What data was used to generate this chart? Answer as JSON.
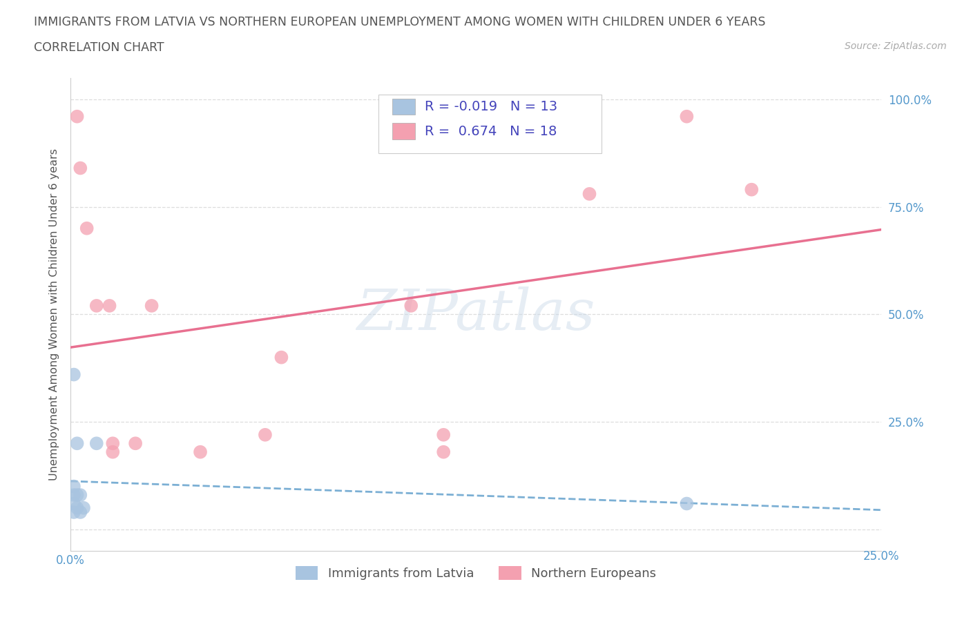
{
  "title": "IMMIGRANTS FROM LATVIA VS NORTHERN EUROPEAN UNEMPLOYMENT AMONG WOMEN WITH CHILDREN UNDER 6 YEARS",
  "subtitle": "CORRELATION CHART",
  "source": "Source: ZipAtlas.com",
  "ylabel": "Unemployment Among Women with Children Under 6 years",
  "xlim": [
    0.0,
    0.25
  ],
  "ylim": [
    -0.05,
    1.05
  ],
  "yticks": [
    0.0,
    0.25,
    0.5,
    0.75,
    1.0
  ],
  "yticklabels_right": [
    "",
    "25.0%",
    "50.0%",
    "75.0%",
    "100.0%"
  ],
  "latvia_x": [
    0.001,
    0.001,
    0.001,
    0.001,
    0.001,
    0.002,
    0.002,
    0.002,
    0.003,
    0.003,
    0.004,
    0.008,
    0.19
  ],
  "latvia_y": [
    0.04,
    0.06,
    0.08,
    0.1,
    0.36,
    0.05,
    0.08,
    0.2,
    0.04,
    0.08,
    0.05,
    0.2,
    0.06
  ],
  "northern_x": [
    0.002,
    0.003,
    0.005,
    0.008,
    0.012,
    0.013,
    0.013,
    0.02,
    0.025,
    0.04,
    0.06,
    0.065,
    0.105,
    0.115,
    0.115,
    0.16,
    0.19,
    0.21
  ],
  "northern_y": [
    0.96,
    0.84,
    0.7,
    0.52,
    0.52,
    0.18,
    0.2,
    0.2,
    0.52,
    0.18,
    0.22,
    0.4,
    0.52,
    0.18,
    0.22,
    0.78,
    0.96,
    0.79
  ],
  "latvia_color": "#a8c4e0",
  "northern_color": "#f4a0b0",
  "latvia_line_color": "#7bafd4",
  "northern_line_color": "#e87090",
  "latvia_R": -0.019,
  "latvia_N": 13,
  "northern_R": 0.674,
  "northern_N": 18,
  "legend_label_latvia": "Immigrants from Latvia",
  "legend_label_northern": "Northern Europeans",
  "background_color": "#ffffff",
  "grid_color": "#dddddd",
  "title_color": "#555555",
  "axis_label_color": "#555555",
  "tick_color": "#5599cc",
  "R_color": "#4444bb"
}
